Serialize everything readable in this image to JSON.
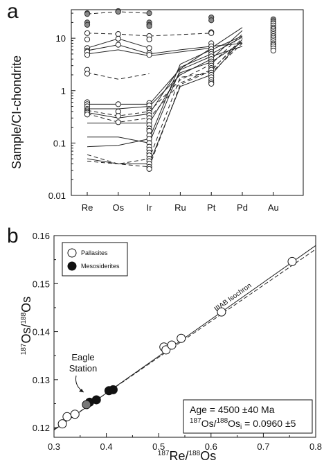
{
  "chart_data": [
    {
      "type": "line",
      "panel_label": "a",
      "ylabel": "Sample/CI-chondrite",
      "ylog": true,
      "ylim": [
        0.01,
        35
      ],
      "yticks": [
        0.01,
        0.1,
        1,
        10
      ],
      "ytick_labels": [
        "0.01",
        "0.1",
        "1",
        "10"
      ],
      "categories": [
        "Re",
        "Os",
        "Ir",
        "Ru",
        "Pt",
        "Pd",
        "Au"
      ],
      "series": [
        {
          "style": "dashed",
          "points": [
            [
              0,
              29
            ],
            [
              1,
              32
            ],
            [
              2,
              30
            ]
          ]
        },
        {
          "style": "dashed",
          "points": [
            [
              0,
              12.5
            ],
            [
              1,
              12
            ],
            [
              2,
              11
            ],
            [
              4,
              12.5
            ]
          ]
        },
        {
          "style": "solid",
          "points": [
            [
              0,
              6.5
            ],
            [
              1,
              9.8
            ],
            [
              2,
              6.5
            ]
          ]
        },
        {
          "style": "solid",
          "points": [
            [
              0,
              5.8
            ],
            [
              1,
              7.5
            ],
            [
              2,
              5
            ]
          ]
        },
        {
          "style": "solid",
          "points": [
            [
              0,
              5
            ],
            [
              1,
              6
            ],
            [
              2,
              4.6
            ],
            [
              4,
              6.5
            ]
          ]
        },
        {
          "style": "dashed",
          "points": [
            [
              0,
              2.2
            ],
            [
              1,
              1.65
            ],
            [
              2,
              2.1
            ]
          ]
        },
        {
          "style": "solid",
          "points": [
            [
              0,
              0.55
            ],
            [
              1,
              0.55
            ],
            [
              2,
              0.55
            ],
            [
              3,
              2.6
            ],
            [
              4,
              6.5
            ],
            [
              5,
              16
            ]
          ]
        },
        {
          "style": "solid",
          "points": [
            [
              0,
              0.45
            ],
            [
              1,
              0.45
            ],
            [
              2,
              0.5
            ],
            [
              3,
              2.0
            ],
            [
              4,
              4.0
            ],
            [
              5,
              14
            ]
          ]
        },
        {
          "style": "dashed",
          "points": [
            [
              0,
              0.42
            ],
            [
              1,
              0.33
            ],
            [
              2,
              0.4
            ],
            [
              3,
              1.6
            ],
            [
              4,
              3.2
            ],
            [
              5,
              12
            ]
          ]
        },
        {
          "style": "solid",
          "points": [
            [
              0,
              0.38
            ],
            [
              1,
              0.3
            ],
            [
              2,
              0.36
            ],
            [
              3,
              2.8
            ],
            [
              4,
              5.0
            ],
            [
              5,
              10.5
            ]
          ]
        },
        {
          "style": "dashed",
          "points": [
            [
              0,
              0.36
            ],
            [
              1,
              0.25
            ],
            [
              2,
              0.3
            ],
            [
              3,
              1.4
            ],
            [
              4,
              2.5
            ],
            [
              5,
              9
            ]
          ]
        },
        {
          "style": "solid",
          "points": [
            [
              0,
              0.24
            ],
            [
              1,
              0.24
            ],
            [
              2,
              0.24
            ],
            [
              3,
              2.2
            ],
            [
              4,
              3.5
            ],
            [
              5,
              8.5
            ]
          ]
        },
        {
          "style": "dashed",
          "points": [
            [
              0,
              0.06
            ],
            [
              1,
              0.04
            ],
            [
              2,
              0.05
            ],
            [
              3,
              1.8
            ],
            [
              4,
              2.2
            ],
            [
              5,
              8
            ]
          ]
        },
        {
          "style": "solid",
          "points": [
            [
              0,
              0.13
            ],
            [
              1,
              0.13
            ],
            [
              2,
              0.1
            ],
            [
              3,
              2.5
            ],
            [
              4,
              4.5
            ],
            [
              5,
              7
            ]
          ]
        },
        {
          "style": "solid",
          "points": [
            [
              0,
              0.085
            ],
            [
              1,
              0.09
            ],
            [
              2,
              0.12
            ],
            [
              3,
              3.2
            ],
            [
              4,
              6.0
            ],
            [
              5,
              11
            ]
          ]
        },
        {
          "style": "solid",
          "points": [
            [
              0,
              0.05
            ],
            [
              1,
              0.04
            ],
            [
              2,
              0.04
            ],
            [
              3,
              1.2
            ],
            [
              4,
              2.0
            ],
            [
              5,
              9.5
            ]
          ]
        },
        {
          "style": "dashed",
          "points": [
            [
              0,
              0.045
            ],
            [
              1,
              0.04
            ],
            [
              2,
              0.035
            ],
            [
              3,
              1.3
            ],
            [
              4,
              2.4
            ],
            [
              5,
              10
            ]
          ]
        },
        {
          "style": "solid",
          "points": [
            [
              2,
              5.0
            ],
            [
              3,
              6.0
            ],
            [
              4,
              7.0
            ],
            [
              5,
              8.0
            ]
          ]
        }
      ],
      "scatter": [
        {
          "category": 0,
          "marker": "filled-gray",
          "values": [
            30,
            29,
            20,
            18
          ]
        },
        {
          "category": 0,
          "marker": "open",
          "values": [
            12.5,
            9.5,
            6.5,
            5.8,
            5.5,
            4.8,
            2.5,
            2.1,
            0.6,
            0.55,
            0.5,
            0.45,
            0.42,
            0.4,
            0.38,
            0.35
          ]
        },
        {
          "category": 1,
          "marker": "filled-gray",
          "values": [
            33,
            32
          ]
        },
        {
          "category": 1,
          "marker": "open",
          "values": [
            12,
            9.8,
            7.5,
            0.55,
            0.4,
            0.33,
            0.25
          ]
        },
        {
          "category": 2,
          "marker": "filled-gray",
          "values": [
            30,
            20,
            18,
            17
          ]
        },
        {
          "category": 2,
          "marker": "open",
          "values": [
            11,
            9.5,
            6.5,
            5.2,
            4.8,
            0.58,
            0.52,
            0.45,
            0.42,
            0.38,
            0.34,
            0.3,
            0.26,
            0.22,
            0.19,
            0.17,
            0.14,
            0.12,
            0.1,
            0.085,
            0.075,
            0.065,
            0.058,
            0.05,
            0.045,
            0.04,
            0.035,
            0.032
          ]
        },
        {
          "category": 4,
          "marker": "filled-gray",
          "values": [
            25,
            22
          ]
        },
        {
          "category": 4,
          "marker": "open",
          "values": [
            13,
            12.5,
            8,
            7,
            6.2,
            5.5,
            5,
            4.5,
            4,
            3.6,
            3.3,
            3,
            2.7,
            2.5,
            2.2,
            2,
            1.8,
            1.6,
            1.45,
            1.35
          ]
        },
        {
          "category": 6,
          "marker": "filled-gray",
          "values": [
            23,
            21
          ]
        },
        {
          "category": 6,
          "marker": "open",
          "values": [
            19,
            17.5,
            16,
            15,
            14,
            13,
            12,
            11,
            10.2,
            9.5,
            8.8,
            8,
            7.5,
            7,
            6.4,
            5.8
          ]
        }
      ]
    },
    {
      "type": "scatter",
      "panel_label": "b",
      "xlabel": {
        "sup1": "187",
        "base1": "Re/",
        "sup2": "188",
        "base2": "Os"
      },
      "ylabel": {
        "sup1": "187",
        "base1": "Os/",
        "sup2": "188",
        "base2": "Os"
      },
      "xlim": [
        0.3,
        0.8
      ],
      "ylim": [
        0.118,
        0.16
      ],
      "xticks": [
        0.3,
        0.4,
        0.5,
        0.6,
        0.7,
        0.8
      ],
      "xtick_labels": [
        "0.3",
        "0.4",
        "0.5",
        "0.6",
        "0.7",
        "0.8"
      ],
      "yticks": [
        0.12,
        0.13,
        0.14,
        0.15,
        0.16
      ],
      "ytick_labels": [
        "0.12",
        "0.13",
        "0.14",
        "0.15",
        "0.16"
      ],
      "legend": {
        "placement": "top-left",
        "entries": [
          {
            "label": "Pallasites",
            "marker": "open"
          },
          {
            "label": "Mesosiderites",
            "marker": "filled"
          }
        ]
      },
      "series": [
        {
          "name": "Pallasites",
          "marker": "open",
          "points": [
            [
              0.316,
              0.1208
            ],
            [
              0.325,
              0.1223
            ],
            [
              0.34,
              0.1228
            ],
            [
              0.51,
              0.1368
            ],
            [
              0.514,
              0.1362
            ],
            [
              0.525,
              0.1372
            ],
            [
              0.543,
              0.1386
            ],
            [
              0.62,
              0.1441
            ],
            [
              0.755,
              0.1546
            ]
          ]
        },
        {
          "name": "Mesosiderites",
          "marker": "filled",
          "points": [
            [
              0.368,
              0.1253
            ],
            [
              0.381,
              0.1258
            ],
            [
              0.405,
              0.1277
            ],
            [
              0.413,
              0.1279
            ]
          ]
        },
        {
          "name": "Eagle Station",
          "marker": "filled-gray",
          "points": [
            [
              0.362,
              0.1248
            ]
          ]
        }
      ],
      "lines": [
        {
          "style": "solid",
          "from": [
            0.3,
            0.11951
          ],
          "to": [
            0.8,
            0.15793
          ]
        },
        {
          "style": "dashed",
          "from": [
            0.3,
            0.11966
          ],
          "to": [
            0.8,
            0.15716
          ]
        }
      ],
      "line_label": "IIIAB Isochron",
      "annotation": {
        "text_line1": "Eagle",
        "text_line2": "Station"
      },
      "info_box": {
        "age": "Age = 4500 ±40 Ma",
        "initial_sup1": "187",
        "initial_mid": "Os/",
        "initial_sup2": "188",
        "initial_base": "Os",
        "initial_sub": "i",
        "initial_value": " = 0.0960 ±5"
      }
    }
  ]
}
